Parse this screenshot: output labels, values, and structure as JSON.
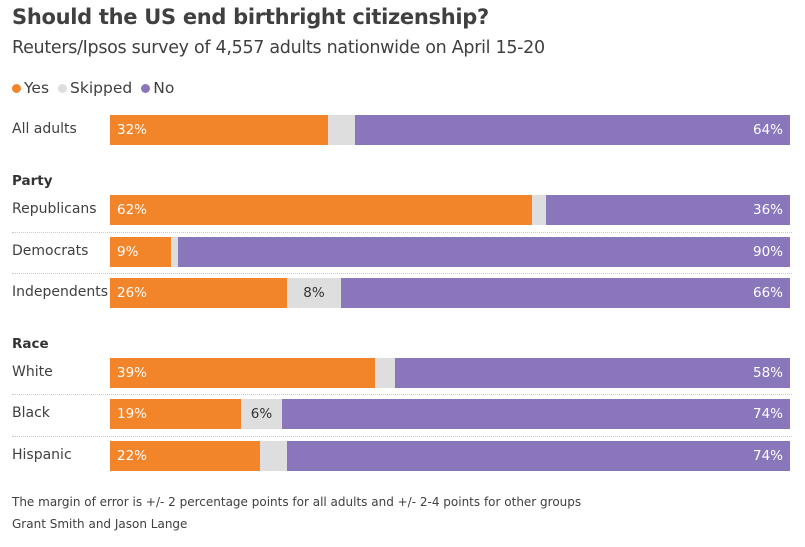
{
  "title": "Should the US end birthright citizenship?",
  "subtitle": "Reuters/Ipsos survey of 4,557 adults nationwide on April 15-20",
  "legend": {
    "yes": "Yes",
    "skipped": "Skipped",
    "no": "No"
  },
  "colors": {
    "yes": "#f2852a",
    "skipped": "#dedede",
    "no": "#8a76bb"
  },
  "sections": {
    "party": "Party",
    "race": "Race"
  },
  "chart_data": {
    "type": "bar",
    "orientation": "horizontal",
    "stacked": true,
    "title": "Should the US end birthright citizenship?",
    "subtitle": "Reuters/Ipsos survey of 4,557 adults nationwide on April 15-20",
    "series": [
      {
        "name": "Yes",
        "color": "#f2852a"
      },
      {
        "name": "Skipped",
        "color": "#dedede"
      },
      {
        "name": "No",
        "color": "#8a76bb"
      }
    ],
    "rows": [
      {
        "label": "All adults",
        "yes": 32,
        "skipped": 4,
        "no": 64,
        "yes_label": "32%",
        "skipped_label": "",
        "no_label": "64%"
      },
      {
        "label": "Republicans",
        "yes": 62,
        "skipped": 2,
        "no": 36,
        "yes_label": "62%",
        "skipped_label": "",
        "no_label": "36%"
      },
      {
        "label": "Democrats",
        "yes": 9,
        "skipped": 1,
        "no": 90,
        "yes_label": "9%",
        "skipped_label": "",
        "no_label": "90%"
      },
      {
        "label": "Independents",
        "yes": 26,
        "skipped": 8,
        "no": 66,
        "yes_label": "26%",
        "skipped_label": "8%",
        "no_label": "66%"
      },
      {
        "label": "White",
        "yes": 39,
        "skipped": 3,
        "no": 58,
        "yes_label": "39%",
        "skipped_label": "",
        "no_label": "58%"
      },
      {
        "label": "Black",
        "yes": 19,
        "skipped": 6,
        "no": 74,
        "yes_label": "19%",
        "skipped_label": "6%",
        "no_label": "74%"
      },
      {
        "label": "Hispanic",
        "yes": 22,
        "skipped": 4,
        "no": 74,
        "yes_label": "22%",
        "skipped_label": "",
        "no_label": "74%"
      }
    ],
    "xlim": [
      0,
      100
    ]
  },
  "footnote": "The margin of error is +/- 2 percentage points for all adults and +/- 2-4 points for other groups",
  "credit": "Grant Smith and Jason Lange"
}
